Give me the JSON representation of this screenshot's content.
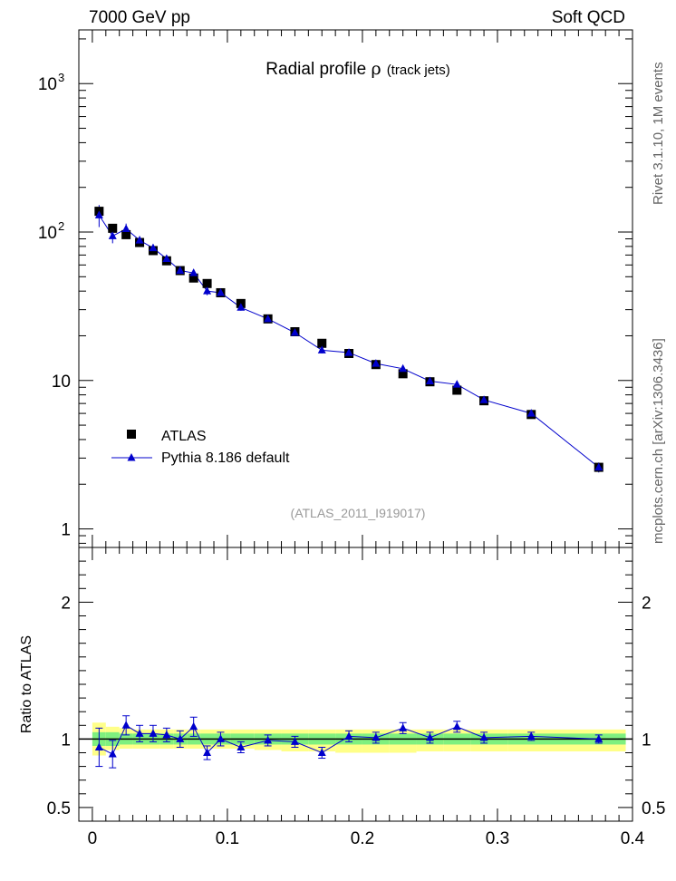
{
  "header": {
    "left": "7000 GeV pp",
    "right": "Soft QCD"
  },
  "side": {
    "rivet": "Rivet 3.1.10,  1M events",
    "mcplots": "mcplots.cern.ch [arXiv:1306.3436]"
  },
  "chart_data": {
    "type": "scatter",
    "title": "Radial profile",
    "title_symbol": "ρ",
    "title_suffix": "(track jets)",
    "watermark": "(ATLAS_2011_I919017)",
    "xlim": [
      -0.01,
      0.4
    ],
    "x_ticks": [
      "0",
      "0.1",
      "0.2",
      "0.3",
      "0.4"
    ],
    "upper": {
      "yscale": "log",
      "ylim": [
        0.75,
        2300
      ],
      "y_tick_labels": [
        "1",
        "10",
        "10^2",
        "10^3"
      ]
    },
    "ratio": {
      "ylabel": "Ratio to ATLAS",
      "ylim": [
        0.4,
        2.4
      ],
      "y_tick_labels": [
        "0.5",
        "1",
        "2"
      ]
    },
    "legend": {
      "position": "lower-left",
      "entries": [
        "ATLAS",
        "Pythia 8.186 default"
      ]
    },
    "series": [
      {
        "name": "ATLAS",
        "marker": "square",
        "color": "#000000",
        "x": [
          0.005,
          0.015,
          0.025,
          0.035,
          0.045,
          0.055,
          0.065,
          0.075,
          0.085,
          0.095,
          0.11,
          0.13,
          0.15,
          0.17,
          0.19,
          0.21,
          0.23,
          0.25,
          0.27,
          0.29,
          0.325,
          0.375
        ],
        "y": [
          138,
          106,
          96,
          85,
          75,
          64,
          55,
          49,
          45,
          39,
          33,
          26,
          21.3,
          17.8,
          15.2,
          12.8,
          11.1,
          9.8,
          8.6,
          7.3,
          5.9,
          2.6
        ]
      },
      {
        "name": "Pythia 8.186 default",
        "marker": "triangle",
        "color": "#0000cc",
        "x": [
          0.005,
          0.015,
          0.025,
          0.035,
          0.045,
          0.055,
          0.065,
          0.075,
          0.085,
          0.095,
          0.11,
          0.13,
          0.15,
          0.17,
          0.19,
          0.21,
          0.23,
          0.25,
          0.27,
          0.29,
          0.325,
          0.375
        ],
        "y": [
          130,
          94,
          105,
          88,
          78,
          66,
          55,
          53,
          40,
          39,
          31,
          26,
          21,
          16,
          15.4,
          13,
          12,
          9.9,
          9.4,
          7.4,
          6.0,
          2.6
        ],
        "yerr": [
          22,
          10,
          9,
          6,
          5,
          4,
          3,
          3,
          2.5,
          2,
          1.5,
          1.2,
          1,
          0.8,
          0.7,
          0.6,
          0.6,
          0.5,
          0.5,
          0.4,
          0.3,
          0.2
        ],
        "ratio": [
          0.94,
          0.89,
          1.1,
          1.04,
          1.04,
          1.03,
          1.0,
          1.09,
          0.9,
          1.0,
          0.94,
          0.99,
          0.98,
          0.9,
          1.02,
          1.01,
          1.08,
          1.01,
          1.09,
          1.01,
          1.02,
          1.0
        ],
        "ratio_err": [
          0.14,
          0.1,
          0.07,
          0.06,
          0.06,
          0.05,
          0.06,
          0.07,
          0.05,
          0.05,
          0.04,
          0.04,
          0.04,
          0.04,
          0.04,
          0.04,
          0.04,
          0.04,
          0.04,
          0.04,
          0.03,
          0.03
        ]
      }
    ],
    "bands": {
      "green_halfwidth": [
        0.05,
        0.05,
        0.04,
        0.04,
        0.04,
        0.04,
        0.04,
        0.04,
        0.04,
        0.04,
        0.04,
        0.04,
        0.04,
        0.04,
        0.04,
        0.04,
        0.04,
        0.04,
        0.04,
        0.04,
        0.04,
        0.04
      ],
      "yellow_low": [
        0.88,
        0.92,
        0.93,
        0.93,
        0.93,
        0.93,
        0.93,
        0.93,
        0.93,
        0.93,
        0.93,
        0.92,
        0.91,
        0.91,
        0.9,
        0.9,
        0.9,
        0.91,
        0.91,
        0.91,
        0.91,
        0.91
      ],
      "yellow_high": [
        1.12,
        1.09,
        1.08,
        1.07,
        1.07,
        1.07,
        1.07,
        1.07,
        1.07,
        1.07,
        1.07,
        1.07,
        1.07,
        1.07,
        1.07,
        1.07,
        1.07,
        1.07,
        1.07,
        1.07,
        1.07,
        1.07
      ],
      "colors": {
        "green": "#7ff07f",
        "yellow": "#ffff88"
      }
    }
  }
}
